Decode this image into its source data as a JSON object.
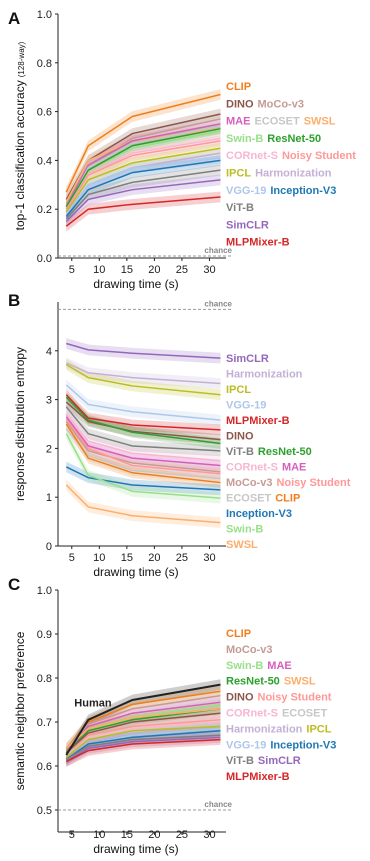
{
  "colors": {
    "CLIP": "#f07f1b",
    "DINO": "#8c564b",
    "MoCo-v3": "#c49c94",
    "SWSL": "#fdae6b",
    "MAE": "#d65fbd",
    "ECOSET": "#c7c7c7",
    "Swin-B": "#98df8a",
    "ResNet-50": "#2ca02c",
    "CORnet-S": "#f7b6d2",
    "Noisy Student": "#ff9896",
    "IPCL": "#bcbd22",
    "Harmonization": "#c5b0d5",
    "VGG-19": "#aec7e8",
    "Inception-V3": "#1f77b4",
    "ViT-B": "#7f7f7f",
    "SimCLR": "#9467bd",
    "MLPMixer-B": "#d62728",
    "Human": "#222222"
  },
  "chart_data": [
    {
      "panel": "A",
      "type": "line",
      "xlabel": "drawing time (s)",
      "ylabel": "top-1 classification accuracy",
      "ylabel_note": "(128-way)",
      "x": [
        4,
        8,
        16,
        32
      ],
      "xticks": [
        5,
        10,
        15,
        20,
        25,
        30
      ],
      "yticks": [
        "0.0",
        "0.2",
        "0.4",
        "0.6",
        "0.8",
        "1.0"
      ],
      "ylim": [
        0,
        1.0
      ],
      "chance_label": "chance",
      "chance_value": 0.008,
      "series": [
        {
          "name": "CLIP",
          "values": [
            0.27,
            0.46,
            0.58,
            0.67
          ]
        },
        {
          "name": "DINO",
          "values": [
            0.24,
            0.4,
            0.51,
            0.59
          ]
        },
        {
          "name": "MoCo-v3",
          "values": [
            0.22,
            0.38,
            0.49,
            0.57
          ]
        },
        {
          "name": "SWSL",
          "values": [
            0.23,
            0.4,
            0.48,
            0.53
          ]
        },
        {
          "name": "MAE",
          "values": [
            0.21,
            0.38,
            0.48,
            0.55
          ]
        },
        {
          "name": "ECOSET",
          "values": [
            0.2,
            0.37,
            0.47,
            0.54
          ]
        },
        {
          "name": "Swin-B",
          "values": [
            0.2,
            0.36,
            0.45,
            0.52
          ]
        },
        {
          "name": "ResNet-50",
          "values": [
            0.21,
            0.36,
            0.46,
            0.53
          ]
        },
        {
          "name": "CORnet-S",
          "values": [
            0.19,
            0.34,
            0.43,
            0.49
          ]
        },
        {
          "name": "Noisy Student",
          "values": [
            0.2,
            0.34,
            0.42,
            0.48
          ]
        },
        {
          "name": "IPCL",
          "values": [
            0.19,
            0.32,
            0.39,
            0.45
          ]
        },
        {
          "name": "Harmonization",
          "values": [
            0.18,
            0.3,
            0.37,
            0.43
          ]
        },
        {
          "name": "VGG-19",
          "values": [
            0.18,
            0.3,
            0.37,
            0.41
          ]
        },
        {
          "name": "Inception-V3",
          "values": [
            0.17,
            0.28,
            0.35,
            0.4
          ]
        },
        {
          "name": "ViT-B",
          "values": [
            0.16,
            0.26,
            0.31,
            0.36
          ]
        },
        {
          "name": "SimCLR",
          "values": [
            0.15,
            0.24,
            0.28,
            0.32
          ]
        },
        {
          "name": "MLPMixer-B",
          "values": [
            0.13,
            0.2,
            0.22,
            0.25
          ]
        }
      ],
      "labels": [
        [
          "CLIP"
        ],
        [
          "DINO",
          "MoCo-v3"
        ],
        [
          "MAE",
          "ECOSET",
          "SWSL"
        ],
        [
          "Swin-B",
          "ResNet-50"
        ],
        [
          "CORnet-S",
          "Noisy Student"
        ],
        [
          "IPCL",
          "Harmonization"
        ],
        [
          "VGG-19",
          "Inception-V3"
        ],
        [
          "ViT-B"
        ],
        [
          "SimCLR"
        ],
        [
          "MLPMixer-B"
        ]
      ]
    },
    {
      "panel": "B",
      "type": "line",
      "xlabel": "drawing time (s)",
      "ylabel": "response distribution entropy",
      "x": [
        4,
        8,
        16,
        32
      ],
      "xticks": [
        5,
        10,
        15,
        20,
        25,
        30
      ],
      "yticks": [
        "0",
        "1",
        "2",
        "3",
        "4"
      ],
      "ylim": [
        0,
        5.0
      ],
      "chance_label": "chance",
      "chance_value": 4.85,
      "series": [
        {
          "name": "SimCLR",
          "values": [
            4.15,
            4.02,
            3.95,
            3.85
          ]
        },
        {
          "name": "Harmonization",
          "values": [
            3.75,
            3.55,
            3.45,
            3.33
          ]
        },
        {
          "name": "IPCL",
          "values": [
            3.72,
            3.45,
            3.28,
            3.1
          ]
        },
        {
          "name": "VGG-19",
          "values": [
            3.3,
            2.9,
            2.75,
            2.58
          ]
        },
        {
          "name": "MLPMixer-B",
          "values": [
            3.1,
            2.62,
            2.48,
            2.38
          ]
        },
        {
          "name": "DINO",
          "values": [
            2.95,
            2.55,
            2.35,
            2.18
          ]
        },
        {
          "name": "ResNet-50",
          "values": [
            3.05,
            2.58,
            2.33,
            2.1
          ]
        },
        {
          "name": "ViT-B",
          "values": [
            2.85,
            2.3,
            2.05,
            1.95
          ]
        },
        {
          "name": "CORnet-S",
          "values": [
            2.7,
            2.15,
            1.9,
            1.75
          ]
        },
        {
          "name": "MAE",
          "values": [
            2.65,
            2.05,
            1.8,
            1.65
          ]
        },
        {
          "name": "MoCo-v3",
          "values": [
            2.55,
            1.95,
            1.7,
            1.52
          ]
        },
        {
          "name": "Noisy Student",
          "values": [
            2.6,
            2.0,
            1.65,
            1.48
          ]
        },
        {
          "name": "ECOSET",
          "values": [
            2.4,
            1.85,
            1.55,
            1.38
          ]
        },
        {
          "name": "CLIP",
          "values": [
            2.5,
            1.8,
            1.5,
            1.3
          ]
        },
        {
          "name": "Inception-V3",
          "values": [
            1.62,
            1.4,
            1.25,
            1.15
          ]
        },
        {
          "name": "Swin-B",
          "values": [
            2.3,
            1.45,
            1.12,
            0.98
          ]
        },
        {
          "name": "SWSL",
          "values": [
            1.25,
            0.8,
            0.62,
            0.48
          ]
        }
      ],
      "labels": [
        [
          "SimCLR"
        ],
        [
          "Harmonization"
        ],
        [
          "IPCL"
        ],
        [
          "VGG-19"
        ],
        [
          "MLPMixer-B"
        ],
        [
          "DINO"
        ],
        [
          "ViT-B",
          "ResNet-50"
        ],
        [
          "CORnet-S",
          "MAE"
        ],
        [
          "MoCo-v3",
          "Noisy Student"
        ],
        [
          "ECOSET",
          "CLIP"
        ],
        [
          "Inception-V3"
        ],
        [
          "Swin-B"
        ],
        [
          "SWSL"
        ]
      ]
    },
    {
      "panel": "C",
      "type": "line",
      "xlabel": "drawing time (s)",
      "ylabel": "semantic neighbor preference",
      "x": [
        4,
        8,
        16,
        32
      ],
      "xticks": [
        5,
        10,
        15,
        20,
        25,
        30
      ],
      "yticks": [
        "0.5",
        "0.6",
        "0.7",
        "0.8",
        "0.9",
        "1.0"
      ],
      "ylim": [
        0.45,
        1.0
      ],
      "chance_label": "chance",
      "chance_value": 0.5,
      "human_label": "Human",
      "series": [
        {
          "name": "Human",
          "values": [
            0.625,
            0.705,
            0.75,
            0.785
          ]
        },
        {
          "name": "CLIP",
          "values": [
            0.64,
            0.7,
            0.74,
            0.77
          ]
        },
        {
          "name": "MoCo-v3",
          "values": [
            0.64,
            0.695,
            0.73,
            0.76
          ]
        },
        {
          "name": "Swin-B",
          "values": [
            0.63,
            0.68,
            0.71,
            0.74
          ]
        },
        {
          "name": "MAE",
          "values": [
            0.63,
            0.69,
            0.72,
            0.745
          ]
        },
        {
          "name": "ResNet-50",
          "values": [
            0.63,
            0.68,
            0.705,
            0.73
          ]
        },
        {
          "name": "SWSL",
          "values": [
            0.64,
            0.685,
            0.71,
            0.73
          ]
        },
        {
          "name": "DINO",
          "values": [
            0.63,
            0.675,
            0.7,
            0.72
          ]
        },
        {
          "name": "Noisy Student",
          "values": [
            0.625,
            0.67,
            0.69,
            0.705
          ]
        },
        {
          "name": "CORnet-S",
          "values": [
            0.62,
            0.665,
            0.685,
            0.7
          ]
        },
        {
          "name": "ECOSET",
          "values": [
            0.625,
            0.66,
            0.68,
            0.695
          ]
        },
        {
          "name": "Harmonization",
          "values": [
            0.62,
            0.655,
            0.675,
            0.69
          ]
        },
        {
          "name": "IPCL",
          "values": [
            0.62,
            0.66,
            0.68,
            0.69
          ]
        },
        {
          "name": "VGG-19",
          "values": [
            0.615,
            0.65,
            0.67,
            0.685
          ]
        },
        {
          "name": "Inception-V3",
          "values": [
            0.615,
            0.65,
            0.665,
            0.68
          ]
        },
        {
          "name": "ViT-B",
          "values": [
            0.615,
            0.645,
            0.66,
            0.67
          ]
        },
        {
          "name": "SimCLR",
          "values": [
            0.61,
            0.64,
            0.655,
            0.665
          ]
        },
        {
          "name": "MLPMixer-B",
          "values": [
            0.61,
            0.635,
            0.65,
            0.66
          ]
        }
      ],
      "labels": [
        [
          "CLIP"
        ],
        [
          "MoCo-v3"
        ],
        [
          "Swin-B",
          "MAE"
        ],
        [
          "ResNet-50",
          "SWSL"
        ],
        [
          "DINO",
          "Noisy Student"
        ],
        [
          "CORnet-S",
          "ECOSET"
        ],
        [
          "Harmonization",
          "IPCL"
        ],
        [
          "VGG-19",
          "Inception-V3"
        ],
        [
          "ViT-B",
          "SimCLR"
        ],
        [
          "MLPMixer-B"
        ]
      ]
    }
  ]
}
